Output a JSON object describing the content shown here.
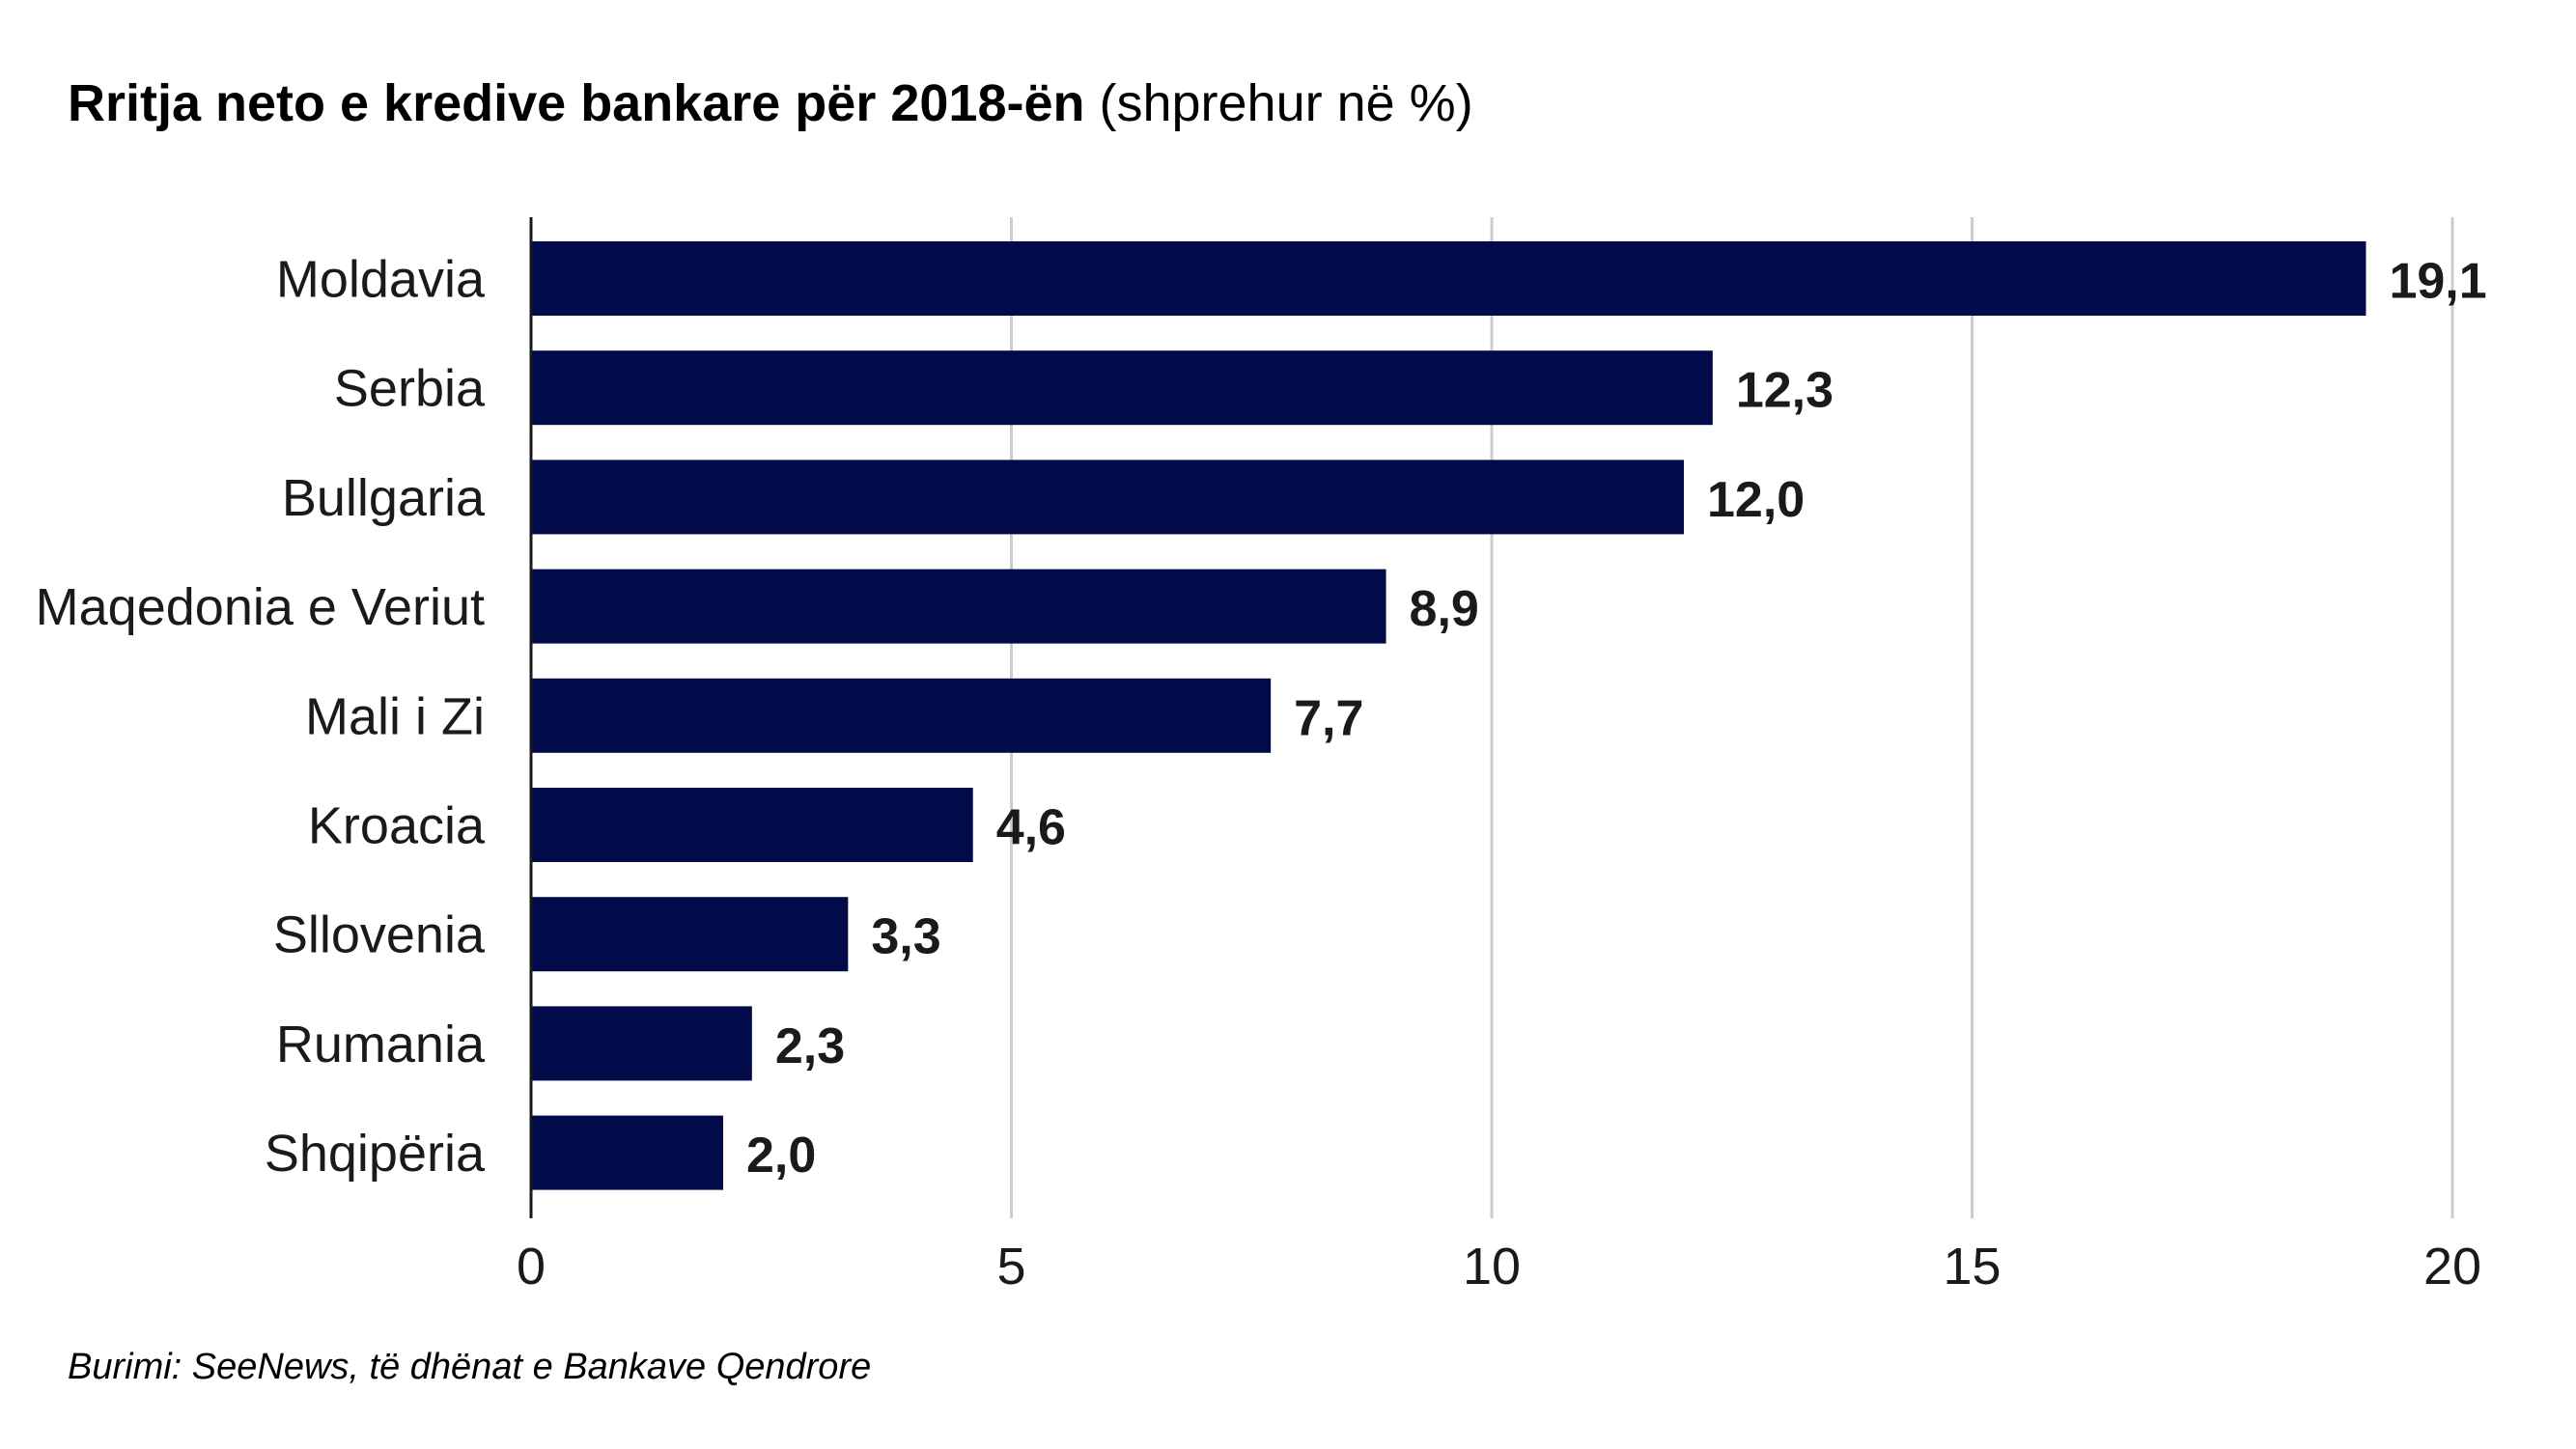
{
  "chart_data": {
    "type": "bar",
    "orientation": "horizontal",
    "title": "Rritja neto e kredive bankare për 2018-ën",
    "subtitle": "(shprehur në %)",
    "source": "Burimi: SeeNews, të dhënat e Bankave Qendrore",
    "categories": [
      "Moldavia",
      "Serbia",
      "Bullgaria",
      "Maqedonia e Veriut",
      "Mali i Zi",
      "Kroacia",
      "Sllovenia",
      "Rumania",
      "Shqipëria"
    ],
    "values": [
      19.1,
      12.3,
      12.0,
      8.9,
      7.7,
      4.6,
      3.3,
      2.3,
      2.0
    ],
    "value_labels": [
      "19,1",
      "12,3",
      "12,0",
      "8,9",
      "7,7",
      "4,6",
      "3,3",
      "2,3",
      "2,0"
    ],
    "xticks": [
      0,
      5,
      10,
      15,
      20
    ],
    "xtick_labels": [
      "0",
      "5",
      "10",
      "15",
      "20"
    ],
    "xlim": [
      0,
      20
    ],
    "xlabel": "",
    "ylabel": "",
    "grid": "vertical",
    "legend": "none",
    "bar_color": "#020b4a",
    "grid_color": "#cccccc",
    "axis_color": "#1a1a1a",
    "text_color": "#1a1a1a"
  }
}
